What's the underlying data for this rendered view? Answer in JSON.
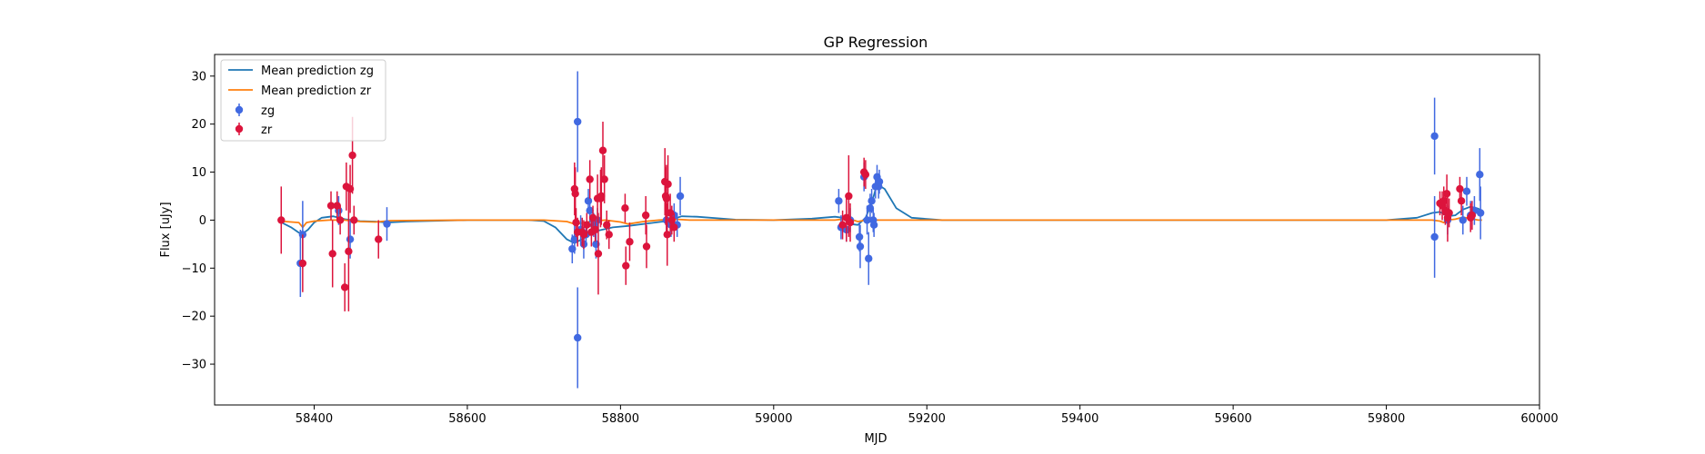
{
  "chart_data": {
    "type": "scatter",
    "title": "GP Regression",
    "xlabel": "MJD",
    "ylabel": "Flux [uJy]",
    "xlim": [
      58270,
      60000
    ],
    "ylim": [
      -38.5,
      34.5
    ],
    "xticks": [
      58400,
      58600,
      58800,
      59000,
      59200,
      59400,
      59600,
      59800,
      60000
    ],
    "yticks": [
      -30,
      -20,
      -10,
      0,
      10,
      20,
      30
    ],
    "grid": false,
    "legend_position": "top-left",
    "legend": [
      "Mean prediction zg",
      "Mean prediction zr",
      "zg",
      "zr"
    ],
    "colors": {
      "zg_line": "#1f77b4",
      "zr_line": "#ff7f0e",
      "zg_points": "#4169e1",
      "zr_points": "#dc143c"
    },
    "lines": [
      {
        "name": "Mean prediction zg",
        "x": [
          58355,
          58370,
          58380,
          58385,
          58392,
          58400,
          58410,
          58425,
          58440,
          58460,
          58480,
          58495,
          58520,
          58600,
          58680,
          58700,
          58715,
          58730,
          58740,
          58755,
          58770,
          58790,
          58810,
          58840,
          58860,
          58880,
          58900,
          58950,
          59000,
          59050,
          59080,
          59090,
          59100,
          59110,
          59120,
          59128,
          59135,
          59145,
          59160,
          59180,
          59220,
          59400,
          59600,
          59800,
          59840,
          59860,
          59870,
          59880,
          59890,
          59900,
          59910,
          59920,
          59925
        ],
        "y": [
          -0.3,
          -1.5,
          -2.6,
          -2.8,
          -2.0,
          -0.5,
          0.5,
          0.8,
          0.2,
          -0.2,
          -0.3,
          -0.5,
          -0.3,
          0.0,
          0.0,
          -0.2,
          -1.5,
          -4.0,
          -4.8,
          -3.5,
          -2.2,
          -1.5,
          -1.2,
          -0.6,
          -0.2,
          0.8,
          0.7,
          0.1,
          0.0,
          0.3,
          0.7,
          0.5,
          -0.8,
          -1.0,
          0.5,
          3.5,
          7.5,
          6.5,
          2.5,
          0.5,
          0.0,
          0.0,
          0.0,
          0.0,
          0.5,
          1.5,
          1.7,
          0.8,
          1.0,
          2.2,
          2.8,
          2.4,
          1.8
        ]
      },
      {
        "name": "Mean prediction zr",
        "x": [
          58355,
          58380,
          58385,
          58390,
          58400,
          58420,
          58440,
          58460,
          58480,
          58500,
          58600,
          58700,
          58730,
          58740,
          58750,
          58760,
          58780,
          58800,
          58810,
          58830,
          58850,
          58870,
          58890,
          59000,
          59080,
          59090,
          59100,
          59110,
          59120,
          59130,
          59200,
          59400,
          59600,
          59800,
          59860,
          59870,
          59875,
          59880,
          59890,
          59900,
          59910,
          59920,
          59925
        ],
        "y": [
          -0.2,
          -0.5,
          -1.5,
          -0.5,
          -0.2,
          0.0,
          0.0,
          -0.3,
          -0.4,
          -0.1,
          0.0,
          0.0,
          -0.3,
          -0.8,
          -0.6,
          -0.3,
          0.0,
          -0.4,
          -0.8,
          -0.3,
          0.0,
          0.2,
          0.0,
          0.0,
          0.0,
          0.2,
          0.2,
          -0.3,
          0.0,
          0.0,
          0.0,
          0.0,
          0.0,
          0.0,
          0.0,
          -0.2,
          -0.5,
          0.0,
          0.2,
          0.6,
          0.3,
          0.0,
          0.0
        ]
      }
    ],
    "series": [
      {
        "name": "zg",
        "points": [
          {
            "x": 58382,
            "y": -9.0,
            "err": 7.0
          },
          {
            "x": 58385,
            "y": -3.0,
            "err": 7.0
          },
          {
            "x": 58432,
            "y": 2.0,
            "err": 3.0
          },
          {
            "x": 58447,
            "y": -4.0,
            "err": 4.0
          },
          {
            "x": 58495,
            "y": -0.8,
            "err": 3.5
          },
          {
            "x": 58737,
            "y": -6.0,
            "err": 3.0
          },
          {
            "x": 58740,
            "y": -4.0,
            "err": 3.0
          },
          {
            "x": 58744,
            "y": 20.5,
            "err": 10.5
          },
          {
            "x": 58744,
            "y": -24.5,
            "err": 10.5
          },
          {
            "x": 58748,
            "y": -2.0,
            "err": 3.0
          },
          {
            "x": 58752,
            "y": -5.0,
            "err": 3.0
          },
          {
            "x": 58755,
            "y": -3.0,
            "err": 2.5
          },
          {
            "x": 58758,
            "y": 4.0,
            "err": 2.5
          },
          {
            "x": 58760,
            "y": 2.0,
            "err": 2.5
          },
          {
            "x": 58765,
            "y": -1.0,
            "err": 2.5
          },
          {
            "x": 58768,
            "y": -5.0,
            "err": 3.0
          },
          {
            "x": 58770,
            "y": 0.0,
            "err": 2.5
          },
          {
            "x": 58860,
            "y": 0.0,
            "err": 2.5
          },
          {
            "x": 58866,
            "y": -1.0,
            "err": 2.5
          },
          {
            "x": 58870,
            "y": 1.0,
            "err": 2.5
          },
          {
            "x": 58874,
            "y": -1.0,
            "err": 2.5
          },
          {
            "x": 58878,
            "y": 5.0,
            "err": 4.0
          },
          {
            "x": 59085,
            "y": 4.0,
            "err": 2.5
          },
          {
            "x": 59088,
            "y": -1.5,
            "err": 2.5
          },
          {
            "x": 59095,
            "y": -2.0,
            "err": 2.5
          },
          {
            "x": 59100,
            "y": 0.0,
            "err": 2.5
          },
          {
            "x": 59112,
            "y": -3.5,
            "err": 3.0
          },
          {
            "x": 59113,
            "y": -5.5,
            "err": 4.5
          },
          {
            "x": 59118,
            "y": 9.0,
            "err": 3.0
          },
          {
            "x": 59122,
            "y": 0.0,
            "err": 3.0
          },
          {
            "x": 59124,
            "y": -8.0,
            "err": 5.5
          },
          {
            "x": 59126,
            "y": 2.5,
            "err": 3.0
          },
          {
            "x": 59128,
            "y": 4.0,
            "err": 2.5
          },
          {
            "x": 59130,
            "y": 0.0,
            "err": 2.5
          },
          {
            "x": 59131,
            "y": -1.0,
            "err": 2.5
          },
          {
            "x": 59133,
            "y": 7.0,
            "err": 2.5
          },
          {
            "x": 59135,
            "y": 9.0,
            "err": 2.5
          },
          {
            "x": 59137,
            "y": 7.0,
            "err": 2.5
          },
          {
            "x": 59138,
            "y": 8.0,
            "err": 2.5
          },
          {
            "x": 59863,
            "y": 17.5,
            "err": 8.0
          },
          {
            "x": 59863,
            "y": -3.5,
            "err": 8.5
          },
          {
            "x": 59880,
            "y": 0.0,
            "err": 3.0
          },
          {
            "x": 59900,
            "y": 0.0,
            "err": 3.0
          },
          {
            "x": 59905,
            "y": 6.0,
            "err": 3.0
          },
          {
            "x": 59910,
            "y": 1.0,
            "err": 3.0
          },
          {
            "x": 59915,
            "y": 2.0,
            "err": 3.0
          },
          {
            "x": 59922,
            "y": 9.5,
            "err": 5.5
          },
          {
            "x": 59923,
            "y": 1.5,
            "err": 5.5
          }
        ]
      },
      {
        "name": "zr",
        "points": [
          {
            "x": 58357,
            "y": 0.0,
            "err": 7.0
          },
          {
            "x": 58385,
            "y": -9.0,
            "err": 6.0
          },
          {
            "x": 58422,
            "y": 3.0,
            "err": 3.0
          },
          {
            "x": 58424,
            "y": -7.0,
            "err": 7.0
          },
          {
            "x": 58430,
            "y": 3.0,
            "err": 3.0
          },
          {
            "x": 58434,
            "y": 0.0,
            "err": 3.0
          },
          {
            "x": 58440,
            "y": -14.0,
            "err": 5.0
          },
          {
            "x": 58442,
            "y": 7.0,
            "err": 5.0
          },
          {
            "x": 58445,
            "y": -6.5,
            "err": 12.5
          },
          {
            "x": 58447,
            "y": 6.5,
            "err": 5.0
          },
          {
            "x": 58450,
            "y": 13.5,
            "err": 8.0
          },
          {
            "x": 58452,
            "y": 0.0,
            "err": 3.0
          },
          {
            "x": 58484,
            "y": -4.0,
            "err": 4.0
          },
          {
            "x": 58740,
            "y": 6.5,
            "err": 5.5
          },
          {
            "x": 58741,
            "y": 5.5,
            "err": 5.5
          },
          {
            "x": 58742,
            "y": -0.5,
            "err": 3.0
          },
          {
            "x": 58744,
            "y": -2.5,
            "err": 3.0
          },
          {
            "x": 58750,
            "y": -2.5,
            "err": 3.0
          },
          {
            "x": 58752,
            "y": -3.0,
            "err": 3.0
          },
          {
            "x": 58756,
            "y": -1.0,
            "err": 2.5
          },
          {
            "x": 58760,
            "y": 8.5,
            "err": 4.0
          },
          {
            "x": 58762,
            "y": -2.5,
            "err": 3.0
          },
          {
            "x": 58764,
            "y": 0.5,
            "err": 2.5
          },
          {
            "x": 58767,
            "y": -2.0,
            "err": 2.5
          },
          {
            "x": 58770,
            "y": 4.5,
            "err": 5.0
          },
          {
            "x": 58771,
            "y": -7.0,
            "err": 8.5
          },
          {
            "x": 58774,
            "y": 4.5,
            "err": 6.0
          },
          {
            "x": 58775,
            "y": 5.0,
            "err": 6.0
          },
          {
            "x": 58777,
            "y": 14.5,
            "err": 6.0
          },
          {
            "x": 58779,
            "y": 8.5,
            "err": 5.0
          },
          {
            "x": 58782,
            "y": -1.0,
            "err": 3.0
          },
          {
            "x": 58785,
            "y": -3.0,
            "err": 3.0
          },
          {
            "x": 58806,
            "y": 2.5,
            "err": 3.0
          },
          {
            "x": 58807,
            "y": -9.5,
            "err": 4.0
          },
          {
            "x": 58812,
            "y": -4.5,
            "err": 4.0
          },
          {
            "x": 58833,
            "y": 1.0,
            "err": 4.0
          },
          {
            "x": 58834,
            "y": -5.5,
            "err": 4.5
          },
          {
            "x": 58858,
            "y": 8.0,
            "err": 7.0
          },
          {
            "x": 58859,
            "y": 5.0,
            "err": 6.0
          },
          {
            "x": 58860,
            "y": 4.5,
            "err": 7.0
          },
          {
            "x": 58861,
            "y": -3.0,
            "err": 6.5
          },
          {
            "x": 58862,
            "y": 7.5,
            "err": 6.0
          },
          {
            "x": 58865,
            "y": 1.5,
            "err": 4.0
          },
          {
            "x": 58867,
            "y": 0.0,
            "err": 3.0
          },
          {
            "x": 58870,
            "y": -1.5,
            "err": 3.0
          },
          {
            "x": 59090,
            "y": -1.0,
            "err": 3.0
          },
          {
            "x": 59095,
            "y": 0.5,
            "err": 5.0
          },
          {
            "x": 59098,
            "y": 5.0,
            "err": 8.5
          },
          {
            "x": 59100,
            "y": -0.5,
            "err": 4.0
          },
          {
            "x": 59118,
            "y": 10.0,
            "err": 3.0
          },
          {
            "x": 59120,
            "y": 9.5,
            "err": 3.0
          },
          {
            "x": 59870,
            "y": 3.5,
            "err": 2.5
          },
          {
            "x": 59873,
            "y": 3.0,
            "err": 3.0
          },
          {
            "x": 59875,
            "y": 4.0,
            "err": 3.0
          },
          {
            "x": 59877,
            "y": 2.0,
            "err": 3.0
          },
          {
            "x": 59879,
            "y": 5.5,
            "err": 4.0
          },
          {
            "x": 59880,
            "y": 0.5,
            "err": 5.0
          },
          {
            "x": 59882,
            "y": 1.5,
            "err": 3.0
          },
          {
            "x": 59896,
            "y": 6.5,
            "err": 2.5
          },
          {
            "x": 59898,
            "y": 4.0,
            "err": 3.0
          },
          {
            "x": 59910,
            "y": 0.5,
            "err": 3.0
          },
          {
            "x": 59912,
            "y": 1.0,
            "err": 3.0
          }
        ]
      }
    ]
  }
}
